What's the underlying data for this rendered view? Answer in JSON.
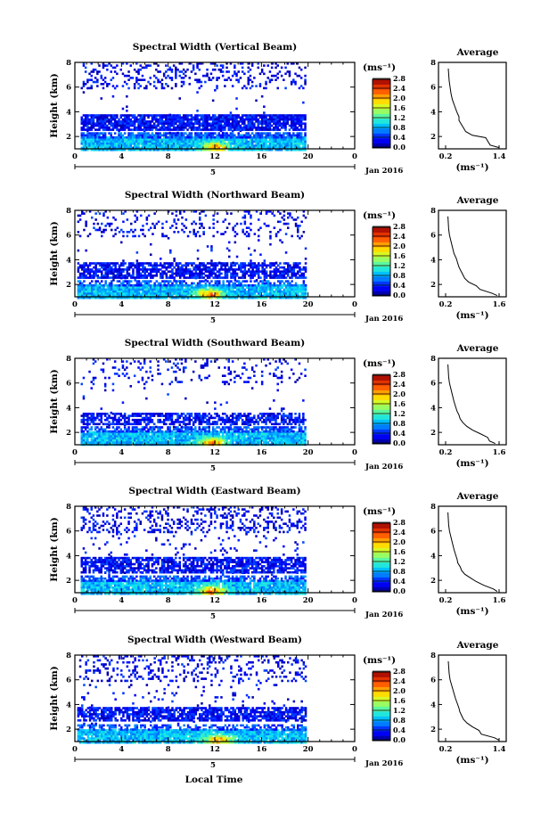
{
  "figure": {
    "x_axis_label": "Local Time",
    "date_label": "Jan 2016",
    "day_label": "5"
  },
  "chart_data": [
    {
      "type": "heatmap",
      "title": "Spectral Width (Vertical Beam)",
      "ylabel": "Height (km)",
      "xlim": [
        0,
        24
      ],
      "ylim": [
        1,
        8
      ],
      "x_ticks": [
        "0",
        "4",
        "8",
        "12",
        "16",
        "20",
        "0"
      ],
      "y_ticks": [
        "2",
        "4",
        "6",
        "8"
      ],
      "colorbar": {
        "unit": "(ms⁻¹)",
        "range": [
          0.0,
          2.8
        ],
        "ticks": [
          "0.0",
          "0.4",
          "0.8",
          "1.2",
          "1.6",
          "2.0",
          "2.4",
          "2.8"
        ]
      },
      "data_extent_hours": [
        0.5,
        19.8
      ],
      "layers": [
        {
          "h0": 1.0,
          "h1": 2.0,
          "mean": 0.9,
          "cover": 0.97
        },
        {
          "h0": 2.0,
          "h1": 2.35,
          "mean": 0.55,
          "cover": 0.8
        },
        {
          "h0": 2.35,
          "h1": 2.55,
          "mean": 0.3,
          "cover": 0.05
        },
        {
          "h0": 2.55,
          "h1": 3.8,
          "mean": 0.35,
          "cover": 0.9
        },
        {
          "h0": 3.8,
          "h1": 6.0,
          "mean": 0.3,
          "cover": 0.02
        },
        {
          "h0": 6.0,
          "h1": 8.0,
          "mean": 0.3,
          "cover": 0.22
        }
      ],
      "peak": {
        "t": 12.0,
        "h": 1.2,
        "value": 2.6
      },
      "average_profile": {
        "title": "Average",
        "xlabel": "(ms⁻¹)",
        "xlim": [
          0.2,
          1.4
        ],
        "ylim": [
          1,
          8
        ],
        "x_ticks": [
          "0.2",
          "1.4"
        ],
        "y_ticks": [
          "2",
          "4",
          "6",
          "8"
        ],
        "h": [
          1.1,
          1.3,
          1.6,
          1.9,
          2.1,
          2.4,
          2.7,
          3.0,
          3.3,
          3.6,
          4.0,
          4.5,
          5.0,
          5.5,
          6.0,
          6.5,
          7.0,
          7.5
        ],
        "w": [
          1.4,
          1.2,
          1.15,
          1.1,
          0.8,
          0.65,
          0.6,
          0.55,
          0.5,
          0.5,
          0.45,
          0.4,
          0.35,
          0.32,
          0.3,
          0.28,
          0.27,
          0.26
        ]
      }
    },
    {
      "type": "heatmap",
      "title": "Spectral Width (Northward Beam)",
      "ylabel": "Height (km)",
      "xlim": [
        0,
        24
      ],
      "ylim": [
        1,
        8
      ],
      "x_ticks": [
        "0",
        "4",
        "8",
        "12",
        "16",
        "20",
        "0"
      ],
      "y_ticks": [
        "2",
        "4",
        "6",
        "8"
      ],
      "colorbar": {
        "unit": "(ms⁻¹)",
        "range": [
          0.0,
          2.8
        ],
        "ticks": [
          "0.0",
          "0.4",
          "0.8",
          "1.2",
          "1.6",
          "2.0",
          "2.4",
          "2.8"
        ]
      },
      "data_extent_hours": [
        0.2,
        19.8
      ],
      "layers": [
        {
          "h0": 1.0,
          "h1": 2.0,
          "mean": 0.9,
          "cover": 0.96
        },
        {
          "h0": 2.0,
          "h1": 2.35,
          "mean": 0.55,
          "cover": 0.55
        },
        {
          "h0": 2.35,
          "h1": 2.6,
          "mean": 0.3,
          "cover": 0.05
        },
        {
          "h0": 2.6,
          "h1": 3.8,
          "mean": 0.35,
          "cover": 0.75
        },
        {
          "h0": 3.8,
          "h1": 6.0,
          "mean": 0.3,
          "cover": 0.03
        },
        {
          "h0": 6.0,
          "h1": 8.0,
          "mean": 0.3,
          "cover": 0.18
        }
      ],
      "peak": {
        "t": 11.5,
        "h": 1.3,
        "value": 2.6
      },
      "average_profile": {
        "title": "Average",
        "xlabel": "(ms⁻¹)",
        "xlim": [
          0.2,
          1.6
        ],
        "ylim": [
          1,
          8
        ],
        "x_ticks": [
          "0.2",
          "1.6"
        ],
        "y_ticks": [
          "2",
          "4",
          "6",
          "8"
        ],
        "h": [
          1.1,
          1.3,
          1.6,
          1.9,
          2.2,
          2.5,
          2.8,
          3.1,
          3.4,
          3.7,
          4.1,
          4.5,
          5.0,
          5.5,
          6.0,
          6.5,
          7.0,
          7.5
        ],
        "w": [
          1.55,
          1.4,
          1.1,
          1.0,
          0.8,
          0.7,
          0.65,
          0.6,
          0.55,
          0.52,
          0.48,
          0.42,
          0.38,
          0.34,
          0.3,
          0.28,
          0.27,
          0.26
        ]
      }
    },
    {
      "type": "heatmap",
      "title": "Spectral Width (Southward Beam)",
      "ylabel": "Height (km)",
      "xlim": [
        0,
        24
      ],
      "ylim": [
        1,
        8
      ],
      "x_ticks": [
        "0",
        "4",
        "8",
        "12",
        "16",
        "20",
        "0"
      ],
      "y_ticks": [
        "2",
        "4",
        "6",
        "8"
      ],
      "colorbar": {
        "unit": "(ms⁻¹)",
        "range": [
          0.0,
          2.8
        ],
        "ticks": [
          "0.0",
          "0.4",
          "0.8",
          "1.2",
          "1.6",
          "2.0",
          "2.4",
          "2.8"
        ]
      },
      "data_extent_hours": [
        0.5,
        19.8
      ],
      "layers": [
        {
          "h0": 1.0,
          "h1": 2.1,
          "mean": 0.9,
          "cover": 0.96
        },
        {
          "h0": 2.1,
          "h1": 2.5,
          "mean": 0.55,
          "cover": 0.7
        },
        {
          "h0": 2.5,
          "h1": 2.7,
          "mean": 0.3,
          "cover": 0.05
        },
        {
          "h0": 2.7,
          "h1": 3.6,
          "mean": 0.35,
          "cover": 0.7
        },
        {
          "h0": 3.6,
          "h1": 6.0,
          "mean": 0.3,
          "cover": 0.02
        },
        {
          "h0": 6.0,
          "h1": 8.0,
          "mean": 0.3,
          "cover": 0.12
        }
      ],
      "peak": {
        "t": 11.7,
        "h": 1.2,
        "value": 2.6
      },
      "average_profile": {
        "title": "Average",
        "xlabel": "(ms⁻¹)",
        "xlim": [
          0.2,
          1.6
        ],
        "ylim": [
          1,
          8
        ],
        "x_ticks": [
          "0.2",
          "1.6"
        ],
        "y_ticks": [
          "2",
          "4",
          "6",
          "8"
        ],
        "h": [
          1.1,
          1.3,
          1.6,
          1.9,
          2.2,
          2.5,
          2.8,
          3.1,
          3.4,
          3.7,
          4.1,
          4.5,
          5.0,
          5.5,
          6.0,
          6.5,
          7.0,
          7.5
        ],
        "w": [
          1.5,
          1.35,
          1.3,
          1.1,
          0.9,
          0.75,
          0.65,
          0.58,
          0.55,
          0.5,
          0.46,
          0.42,
          0.38,
          0.34,
          0.3,
          0.28,
          0.27,
          0.26
        ]
      }
    },
    {
      "type": "heatmap",
      "title": "Spectral Width (Eastward Beam)",
      "ylabel": "Height (km)",
      "xlim": [
        0,
        24
      ],
      "ylim": [
        1,
        8
      ],
      "x_ticks": [
        "0",
        "4",
        "8",
        "12",
        "16",
        "20",
        "0"
      ],
      "y_ticks": [
        "2",
        "4",
        "6",
        "8"
      ],
      "colorbar": {
        "unit": "(ms⁻¹)",
        "range": [
          0.0,
          2.8
        ],
        "ticks": [
          "0.0",
          "0.4",
          "0.8",
          "1.2",
          "1.6",
          "2.0",
          "2.4",
          "2.8"
        ]
      },
      "data_extent_hours": [
        0.5,
        19.8
      ],
      "layers": [
        {
          "h0": 1.0,
          "h1": 2.0,
          "mean": 0.9,
          "cover": 0.96
        },
        {
          "h0": 2.0,
          "h1": 2.4,
          "mean": 0.55,
          "cover": 0.6
        },
        {
          "h0": 2.4,
          "h1": 2.7,
          "mean": 0.3,
          "cover": 0.05
        },
        {
          "h0": 2.7,
          "h1": 3.9,
          "mean": 0.35,
          "cover": 0.75
        },
        {
          "h0": 3.9,
          "h1": 6.0,
          "mean": 0.3,
          "cover": 0.05
        },
        {
          "h0": 6.0,
          "h1": 8.0,
          "mean": 0.3,
          "cover": 0.25
        }
      ],
      "peak": {
        "t": 11.7,
        "h": 1.2,
        "value": 2.6
      },
      "average_profile": {
        "title": "Average",
        "xlabel": "(ms⁻¹)",
        "xlim": [
          0.2,
          1.6
        ],
        "ylim": [
          1,
          8
        ],
        "x_ticks": [
          "0.2",
          "1.6"
        ],
        "y_ticks": [
          "2",
          "4",
          "6",
          "8"
        ],
        "h": [
          1.1,
          1.3,
          1.6,
          1.9,
          2.2,
          2.5,
          2.8,
          3.1,
          3.4,
          3.7,
          4.1,
          4.5,
          5.0,
          5.5,
          6.0,
          6.5,
          7.0,
          7.5
        ],
        "w": [
          1.55,
          1.45,
          1.2,
          1.0,
          0.85,
          0.7,
          0.62,
          0.58,
          0.52,
          0.5,
          0.46,
          0.42,
          0.38,
          0.34,
          0.3,
          0.28,
          0.27,
          0.26
        ]
      }
    },
    {
      "type": "heatmap",
      "title": "Spectral Width (Westward Beam)",
      "ylabel": "Height (km)",
      "xlim": [
        0,
        24
      ],
      "ylim": [
        1,
        8
      ],
      "x_ticks": [
        "0",
        "4",
        "8",
        "12",
        "16",
        "20",
        "0"
      ],
      "y_ticks": [
        "2",
        "4",
        "6",
        "8"
      ],
      "colorbar": {
        "unit": "(ms⁻¹)",
        "range": [
          0.0,
          2.8
        ],
        "ticks": [
          "0.0",
          "0.4",
          "0.8",
          "1.2",
          "1.6",
          "2.0",
          "2.4",
          "2.8"
        ]
      },
      "data_extent_hours": [
        0.2,
        19.8
      ],
      "layers": [
        {
          "h0": 1.0,
          "h1": 2.0,
          "mean": 0.9,
          "cover": 0.96
        },
        {
          "h0": 2.0,
          "h1": 2.4,
          "mean": 0.55,
          "cover": 0.55
        },
        {
          "h0": 2.4,
          "h1": 2.7,
          "mean": 0.3,
          "cover": 0.05
        },
        {
          "h0": 2.7,
          "h1": 3.8,
          "mean": 0.35,
          "cover": 0.75
        },
        {
          "h0": 3.8,
          "h1": 6.0,
          "mean": 0.3,
          "cover": 0.04
        },
        {
          "h0": 6.0,
          "h1": 8.0,
          "mean": 0.3,
          "cover": 0.2
        }
      ],
      "peak": {
        "t": 12.2,
        "h": 1.2,
        "value": 2.6
      },
      "average_profile": {
        "title": "Average",
        "xlabel": "(ms⁻¹)",
        "xlim": [
          0.2,
          1.4
        ],
        "ylim": [
          1,
          8
        ],
        "x_ticks": [
          "0.2",
          "1.4"
        ],
        "y_ticks": [
          "2",
          "4",
          "6",
          "8"
        ],
        "h": [
          1.1,
          1.3,
          1.6,
          1.9,
          2.2,
          2.5,
          2.8,
          3.1,
          3.4,
          3.7,
          4.1,
          4.5,
          5.0,
          5.5,
          6.0,
          6.5,
          7.0,
          7.5
        ],
        "w": [
          1.4,
          1.3,
          1.0,
          0.95,
          0.8,
          0.68,
          0.6,
          0.56,
          0.52,
          0.5,
          0.46,
          0.42,
          0.38,
          0.34,
          0.3,
          0.28,
          0.27,
          0.26
        ]
      }
    }
  ]
}
